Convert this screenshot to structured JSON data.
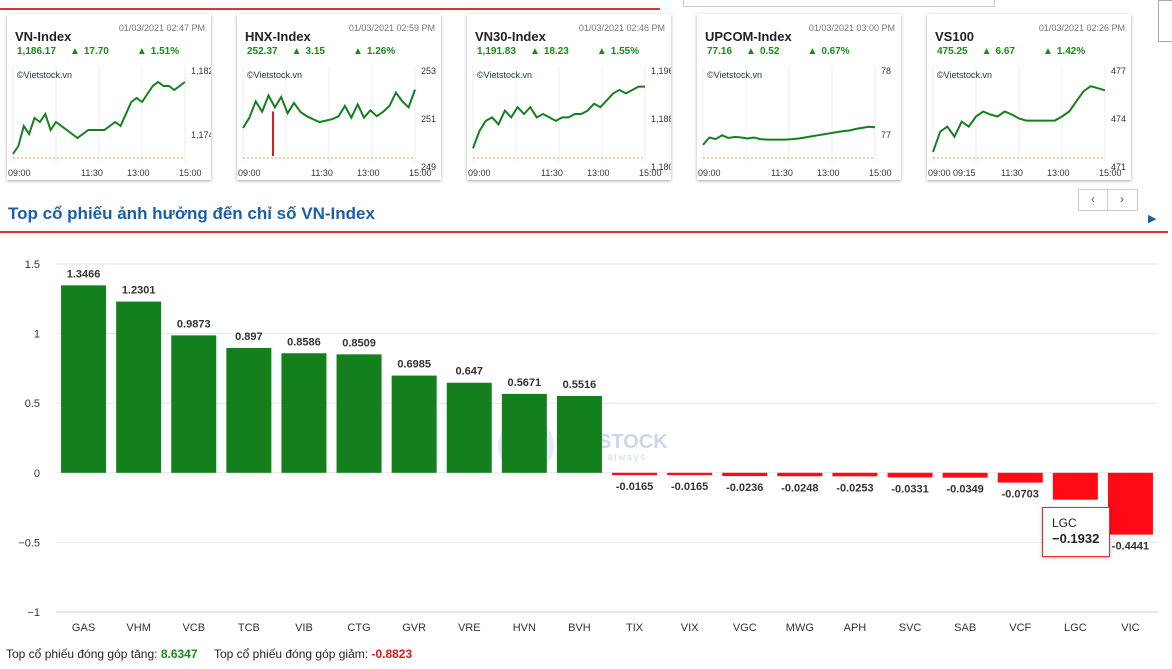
{
  "index_cards": [
    {
      "name": "VN-Index",
      "datetime": "01/03/2021 02:47 PM",
      "value": "1,186.17",
      "change": "17.70",
      "pct": "1.51%",
      "source": "©Vietstock.vn",
      "y_ticks": [
        "1,182",
        "1,174"
      ],
      "x_ticks": [
        "09:00",
        "11:30",
        "13:00",
        "15:00"
      ],
      "series": [
        1168,
        1170,
        1175,
        1173,
        1177,
        1176,
        1178,
        1174,
        1176,
        1175,
        1174,
        1173,
        1172,
        1173,
        1174,
        1174,
        1174,
        1174,
        1175,
        1176,
        1175,
        1178,
        1181,
        1182,
        1181,
        1183,
        1185,
        1186,
        1185,
        1185,
        1184,
        1185,
        1186
      ],
      "series_range": [
        1166,
        1190
      ]
    },
    {
      "name": "HNX-Index",
      "datetime": "01/03/2021 02:59 PM",
      "value": "252.37",
      "change": "3.15",
      "pct": "1.26%",
      "source": "©Vietstock.vn",
      "y_ticks": [
        "253",
        "251",
        "249"
      ],
      "x_ticks": [
        "09:00",
        "11:30",
        "13:00",
        "15:00"
      ],
      "series": [
        249.8,
        250.5,
        251.6,
        250.9,
        252.0,
        251.2,
        251.9,
        250.8,
        251.5,
        250.9,
        250.6,
        250.4,
        250.2,
        250.3,
        250.4,
        250.6,
        251.3,
        250.5,
        251.4,
        250.5,
        251.0,
        250.6,
        250.9,
        251.3,
        252.2,
        251.6,
        251.2,
        252.4
      ],
      "series_range": [
        247.5,
        254
      ],
      "red_dip": true
    },
    {
      "name": "VN30-Index",
      "datetime": "01/03/2021 02:46 PM",
      "value": "1,191.83",
      "change": "18.23",
      "pct": "1.55%",
      "source": "©Vietstock.vn",
      "y_ticks": [
        "1,196",
        "1,188",
        "1,180"
      ],
      "x_ticks": [
        "09:00",
        "11:30",
        "13:00",
        "15:00"
      ],
      "series": [
        1174,
        1179,
        1182,
        1183,
        1181,
        1185,
        1183,
        1186,
        1184,
        1186,
        1183,
        1184,
        1183,
        1182,
        1183,
        1183,
        1184,
        1184,
        1185,
        1187,
        1186,
        1188,
        1190,
        1191,
        1190,
        1191,
        1192,
        1192
      ],
      "series_range": [
        1170,
        1198
      ]
    },
    {
      "name": "UPCOM-Index",
      "datetime": "01/03/2021 03:00 PM",
      "value": "77.16",
      "change": "0.52",
      "pct": "0.67%",
      "source": "©Vietstock.vn",
      "y_ticks": [
        "78",
        "77"
      ],
      "x_ticks": [
        "09:00",
        "11:30",
        "13:00",
        "15:00"
      ],
      "series": [
        76.72,
        76.86,
        76.83,
        76.9,
        76.85,
        76.87,
        76.86,
        76.84,
        76.86,
        76.83,
        76.82,
        76.82,
        76.82,
        76.82,
        76.83,
        76.84,
        76.86,
        76.88,
        76.9,
        76.92,
        76.94,
        76.96,
        76.98,
        76.99,
        77.02,
        77.04,
        77.06,
        77.05
      ],
      "series_range": [
        76.4,
        78.2
      ]
    },
    {
      "name": "VS100",
      "datetime": "01/03/2021 02:26 PM",
      "value": "475.25",
      "change": "6.67",
      "pct": "1.42%",
      "source": "©Vietstock.vn",
      "y_ticks": [
        "477",
        "474",
        "471"
      ],
      "x_ticks": [
        "09:00 09:15",
        "11:30",
        "13:00",
        "15:00"
      ],
      "series": [
        469.5,
        471.5,
        472.0,
        471.0,
        472.5,
        472.0,
        473.0,
        473.5,
        473.2,
        473.0,
        473.5,
        473.2,
        472.8,
        472.6,
        472.6,
        472.6,
        472.6,
        472.6,
        473.0,
        473.5,
        474.5,
        475.5,
        476.0,
        475.8,
        475.6
      ],
      "series_range": [
        468.5,
        478
      ]
    }
  ],
  "nav": {
    "prev": "‹",
    "next": "›"
  },
  "section": {
    "title": "Top cổ phiếu ảnh hưởng đến chỉ số VN-Index"
  },
  "chart_data": {
    "type": "bar",
    "categories": [
      "GAS",
      "VHM",
      "VCB",
      "TCB",
      "VIB",
      "CTG",
      "GVR",
      "VRE",
      "HVN",
      "BVH",
      "TIX",
      "VIX",
      "VGC",
      "MWG",
      "APH",
      "SVC",
      "SAB",
      "VCF",
      "LGC",
      "VIC"
    ],
    "values": [
      1.3466,
      1.2301,
      0.9873,
      0.897,
      0.8586,
      0.8509,
      0.6985,
      0.647,
      0.5671,
      0.5516,
      -0.0165,
      -0.0165,
      -0.0236,
      -0.0248,
      -0.0253,
      -0.0331,
      -0.0349,
      -0.0703,
      -0.1932,
      -0.4441
    ],
    "data_labels": [
      "1.3466",
      "1.2301",
      "0.9873",
      "0.897",
      "0.8586",
      "0.8509",
      "0.6985",
      "0.647",
      "0.5671",
      "0.5516",
      "-0.0165",
      "-0.0165",
      "-0.0236",
      "-0.0248",
      "-0.0253",
      "-0.0331",
      "-0.0349",
      "-0.0703",
      "-0.1932",
      "-0.4441"
    ],
    "y_ticks": [
      "1.5",
      "1",
      "0.5",
      "0",
      "−0.5",
      "−1"
    ],
    "ylim": [
      -1,
      1.5
    ],
    "colors": {
      "positive": "#13801d",
      "negative": "#ff0a15"
    },
    "grid": true,
    "watermark": "STOCK",
    "watermark_sub": "h always"
  },
  "tooltip": {
    "name": "LGC",
    "value": "−0.1932"
  },
  "footer": {
    "up_label": "Top cổ phiếu đóng góp tăng:",
    "up_value": "8.6347",
    "down_label": "Top cổ phiếu đóng góp giảm:",
    "down_value": "-0.8823"
  }
}
